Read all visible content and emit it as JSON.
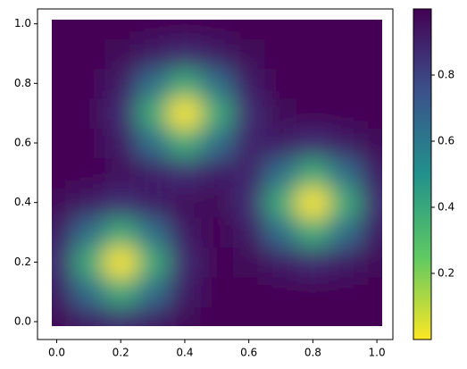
{
  "chart_data": {
    "type": "heatmap",
    "colormap": "viridis",
    "reverse_colormap": true,
    "x": [
      0,
      0.1,
      0.2,
      0.3,
      0.4,
      0.5,
      0.6,
      0.7,
      0.8,
      0.9,
      1
    ],
    "y": [
      0,
      0.1,
      0.2,
      0.3,
      0.4,
      0.5,
      0.6,
      0.7,
      0.8,
      0.9,
      1
    ],
    "values": [
      [
        0.98,
        0.92,
        0.87,
        0.92,
        0.98,
        1.0,
        1.0,
        1.0,
        1.0,
        1.0,
        1.0
      ],
      [
        0.92,
        0.63,
        0.39,
        0.63,
        0.92,
        0.99,
        1.0,
        0.99,
        0.99,
        0.99,
        1.0
      ],
      [
        0.87,
        0.39,
        0.0,
        0.39,
        0.87,
        0.99,
        0.98,
        0.92,
        0.87,
        0.92,
        0.98
      ],
      [
        0.92,
        0.63,
        0.39,
        0.63,
        0.92,
        0.99,
        0.92,
        0.63,
        0.39,
        0.63,
        0.92
      ],
      [
        0.98,
        0.92,
        0.86,
        0.91,
        0.97,
        0.98,
        0.86,
        0.39,
        0.0,
        0.39,
        0.87
      ],
      [
        1.0,
        0.99,
        0.97,
        0.91,
        0.86,
        0.91,
        0.9,
        0.63,
        0.39,
        0.63,
        0.92
      ],
      [
        1.0,
        0.99,
        0.92,
        0.63,
        0.39,
        0.63,
        0.9,
        0.91,
        0.86,
        0.92,
        0.98
      ],
      [
        1.0,
        0.99,
        0.87,
        0.39,
        0.0,
        0.39,
        0.86,
        0.98,
        0.99,
        0.99,
        1.0
      ],
      [
        1.0,
        0.99,
        0.92,
        0.63,
        0.39,
        0.63,
        0.92,
        0.99,
        1.0,
        1.0,
        1.0
      ],
      [
        1.0,
        1.0,
        0.98,
        0.92,
        0.87,
        0.92,
        0.98,
        1.0,
        1.0,
        1.0,
        1.0
      ],
      [
        1.0,
        1.0,
        1.0,
        0.99,
        0.99,
        0.99,
        1.0,
        1.0,
        1.0,
        1.0,
        1.0
      ]
    ],
    "xlim": [
      -0.06,
      1.05
    ],
    "ylim": [
      -0.06,
      1.05
    ],
    "xticks": [
      {
        "value": 0,
        "label": "0.0"
      },
      0.2,
      0.4,
      0.6,
      0.8,
      {
        "value": 1,
        "label": "1.0"
      }
    ],
    "yticks": [
      {
        "value": 0,
        "label": "0.0"
      },
      0.2,
      0.4,
      0.6,
      0.8,
      {
        "value": 1,
        "label": "1.0"
      }
    ],
    "colorbar_lim": [
      0,
      1
    ],
    "colorbar_ticks": [
      0.2,
      0.4,
      0.6,
      0.8
    ]
  }
}
